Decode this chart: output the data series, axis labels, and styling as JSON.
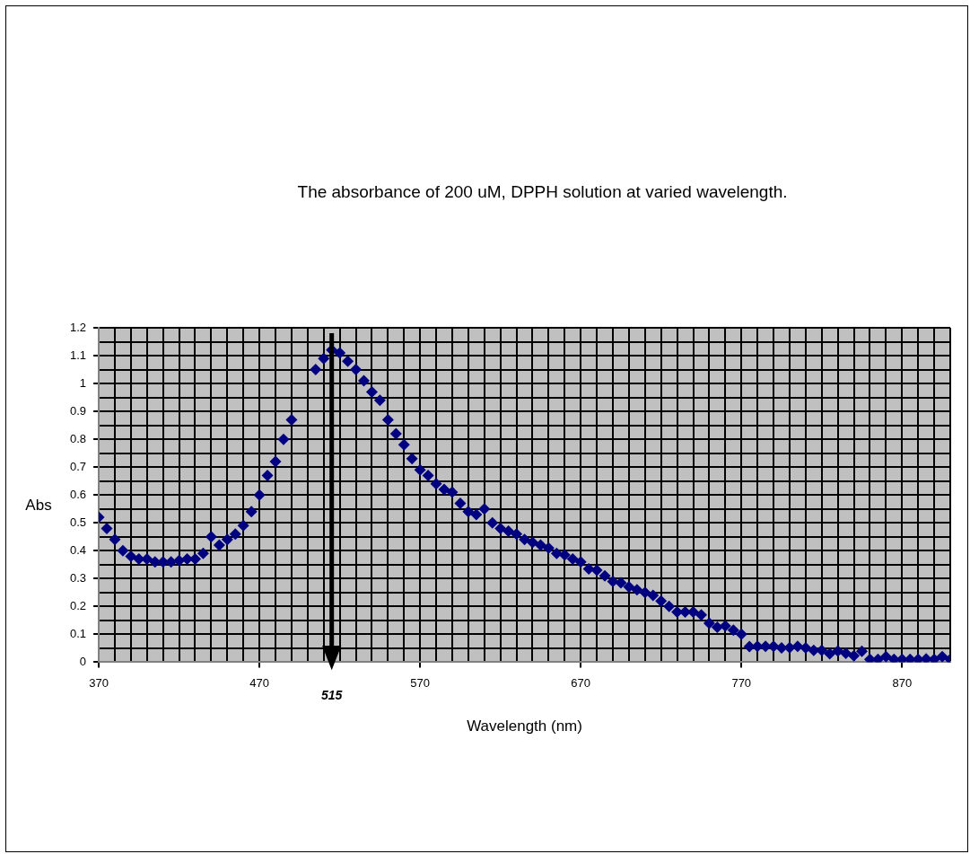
{
  "chart_data": {
    "type": "scatter",
    "title": "The absorbance of 200 uM, DPPH solution at varied wavelength.",
    "xlabel": "Wavelength (nm)",
    "ylabel": "Abs",
    "marker": "diamond",
    "grid": true,
    "xlim": [
      370,
      900
    ],
    "ylim": [
      0,
      1.2
    ],
    "xticks": [
      370,
      {
        "value": 380,
        "label": null
      },
      {
        "value": 390,
        "label": null
      },
      {
        "value": 400,
        "label": null
      },
      {
        "value": 410,
        "label": null
      },
      {
        "value": 420,
        "label": null
      },
      {
        "value": 430,
        "label": null
      },
      {
        "value": 440,
        "label": null
      },
      {
        "value": 450,
        "label": null
      },
      {
        "value": 460,
        "label": null
      },
      470,
      {
        "value": 480,
        "label": null
      },
      {
        "value": 490,
        "label": null
      },
      {
        "value": 500,
        "label": null
      },
      {
        "value": 510,
        "label": null
      },
      {
        "value": 520,
        "label": null
      },
      {
        "value": 530,
        "label": null
      },
      {
        "value": 540,
        "label": null
      },
      {
        "value": 550,
        "label": null
      },
      {
        "value": 560,
        "label": null
      },
      570,
      {
        "value": 580,
        "label": null
      },
      {
        "value": 590,
        "label": null
      },
      {
        "value": 600,
        "label": null
      },
      {
        "value": 610,
        "label": null
      },
      {
        "value": 620,
        "label": null
      },
      {
        "value": 630,
        "label": null
      },
      {
        "value": 640,
        "label": null
      },
      {
        "value": 650,
        "label": null
      },
      {
        "value": 660,
        "label": null
      },
      670,
      {
        "value": 680,
        "label": null
      },
      {
        "value": 690,
        "label": null
      },
      {
        "value": 700,
        "label": null
      },
      {
        "value": 710,
        "label": null
      },
      {
        "value": 720,
        "label": null
      },
      {
        "value": 730,
        "label": null
      },
      {
        "value": 740,
        "label": null
      },
      {
        "value": 750,
        "label": null
      },
      {
        "value": 760,
        "label": null
      },
      770,
      {
        "value": 780,
        "label": null
      },
      {
        "value": 790,
        "label": null
      },
      {
        "value": 800,
        "label": null
      },
      {
        "value": 810,
        "label": null
      },
      {
        "value": 820,
        "label": null
      },
      {
        "value": 830,
        "label": null
      },
      {
        "value": 840,
        "label": null
      },
      {
        "value": 850,
        "label": null
      },
      {
        "value": 860,
        "label": null
      },
      870,
      {
        "value": 880,
        "label": null
      },
      {
        "value": 890,
        "label": null
      },
      {
        "value": 900,
        "label": null
      }
    ],
    "yticks": [
      0,
      {
        "value": 0.05,
        "label": null
      },
      0.1,
      {
        "value": 0.15,
        "label": null
      },
      0.2,
      {
        "value": 0.25,
        "label": null
      },
      0.3,
      {
        "value": 0.35,
        "label": null
      },
      0.4,
      {
        "value": 0.45,
        "label": null
      },
      0.5,
      {
        "value": 0.55,
        "label": null
      },
      0.6,
      {
        "value": 0.65,
        "label": null
      },
      0.7,
      {
        "value": 0.75,
        "label": null
      },
      0.8,
      {
        "value": 0.85,
        "label": null
      },
      0.9,
      {
        "value": 0.95,
        "label": null
      },
      1,
      {
        "value": 1.05,
        "label": null
      },
      1.1,
      {
        "value": 1.15,
        "label": null
      },
      1.2
    ],
    "ref_lines": [
      {
        "axis": "x",
        "value": 515,
        "label": "515"
      }
    ],
    "series": [
      {
        "color": "#000080",
        "x": [
          370,
          375,
          380,
          385,
          390,
          395,
          400,
          405,
          410,
          415,
          420,
          425,
          430,
          435,
          440,
          445,
          450,
          455,
          460,
          465,
          470,
          475,
          480,
          485,
          490,
          505,
          510,
          515,
          520,
          525,
          530,
          535,
          540,
          545,
          550,
          555,
          560,
          565,
          570,
          575,
          580,
          585,
          590,
          595,
          600,
          605,
          610,
          615,
          620,
          625,
          630,
          635,
          640,
          645,
          650,
          655,
          660,
          665,
          670,
          675,
          680,
          685,
          690,
          695,
          700,
          705,
          710,
          715,
          720,
          725,
          730,
          735,
          740,
          745,
          750,
          755,
          760,
          765,
          770,
          775,
          780,
          785,
          790,
          795,
          800,
          805,
          810,
          815,
          820,
          825,
          830,
          835,
          840,
          845,
          850,
          855,
          860,
          865,
          870,
          875,
          880,
          885,
          890,
          895,
          900
        ],
        "values": [
          0.52,
          0.48,
          0.44,
          0.4,
          0.38,
          0.37,
          0.37,
          0.36,
          0.36,
          0.36,
          0.365,
          0.37,
          0.37,
          0.39,
          0.45,
          0.42,
          0.44,
          0.46,
          0.49,
          0.54,
          0.6,
          0.67,
          0.72,
          0.8,
          0.87,
          1.05,
          1.09,
          1.12,
          1.11,
          1.08,
          1.05,
          1.01,
          0.97,
          0.94,
          0.87,
          0.82,
          0.78,
          0.73,
          0.69,
          0.67,
          0.64,
          0.62,
          0.61,
          0.57,
          0.54,
          0.53,
          0.55,
          0.5,
          0.48,
          0.47,
          0.46,
          0.44,
          0.43,
          0.42,
          0.41,
          0.39,
          0.385,
          0.37,
          0.36,
          0.335,
          0.33,
          0.31,
          0.29,
          0.285,
          0.27,
          0.26,
          0.25,
          0.24,
          0.22,
          0.2,
          0.18,
          0.18,
          0.18,
          0.17,
          0.14,
          0.125,
          0.13,
          0.115,
          0.1,
          0.056,
          0.057,
          0.057,
          0.057,
          0.051,
          0.052,
          0.057,
          0.051,
          0.042,
          0.042,
          0.03,
          0.04,
          0.032,
          0.023,
          0.039,
          0.01,
          0.01,
          0.02,
          0.01,
          0.01,
          0.01,
          0.01,
          0.012,
          0.01,
          0.02,
          0.01
        ]
      }
    ]
  }
}
